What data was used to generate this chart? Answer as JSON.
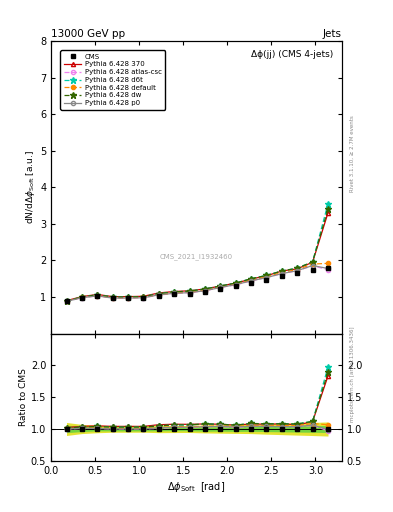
{
  "title_top": "13000 GeV pp",
  "title_right": "Jets",
  "plot_title": "Δϕ(jj) (CMS 4-jets)",
  "ylabel_main": "dN/dΔϕ_rm Soft  [a.u.]",
  "ylabel_ratio": "Ratio to CMS",
  "watermark": "CMS_2021_I1932460",
  "right_label_main": "Rivet 3.1.10, ≥ 2.7M events",
  "right_label_ratio": "mcplots.cern.ch [arXiv:1306.3436]",
  "x_data": [
    0.175,
    0.349,
    0.524,
    0.698,
    0.873,
    1.047,
    1.222,
    1.396,
    1.571,
    1.745,
    1.92,
    2.094,
    2.269,
    2.443,
    2.618,
    2.793,
    2.967,
    3.142
  ],
  "cms_data": [
    0.88,
    0.97,
    1.02,
    0.97,
    0.97,
    0.98,
    1.04,
    1.07,
    1.09,
    1.13,
    1.21,
    1.3,
    1.38,
    1.47,
    1.58,
    1.66,
    1.75,
    1.8
  ],
  "cms_err_green": [
    0.05,
    0.04,
    0.03,
    0.03,
    0.03,
    0.03,
    0.03,
    0.03,
    0.03,
    0.04,
    0.04,
    0.05,
    0.05,
    0.06,
    0.07,
    0.08,
    0.09,
    0.1
  ],
  "cms_err_yellow": [
    0.09,
    0.07,
    0.06,
    0.05,
    0.05,
    0.05,
    0.06,
    0.06,
    0.06,
    0.07,
    0.08,
    0.09,
    0.1,
    0.12,
    0.14,
    0.16,
    0.18,
    0.2
  ],
  "p370_data": [
    0.9,
    1.01,
    1.07,
    1.01,
    1.01,
    1.02,
    1.11,
    1.15,
    1.17,
    1.22,
    1.3,
    1.38,
    1.49,
    1.58,
    1.71,
    1.77,
    1.95,
    3.3
  ],
  "atlas_csc_data": [
    0.88,
    0.98,
    1.03,
    0.97,
    0.97,
    0.98,
    1.05,
    1.1,
    1.12,
    1.17,
    1.26,
    1.33,
    1.44,
    1.53,
    1.64,
    1.72,
    1.85,
    1.75
  ],
  "d6t_data": [
    0.89,
    1.0,
    1.06,
    1.0,
    1.0,
    1.01,
    1.09,
    1.14,
    1.16,
    1.22,
    1.3,
    1.38,
    1.5,
    1.59,
    1.71,
    1.79,
    1.96,
    3.55
  ],
  "default_data": [
    0.89,
    0.99,
    1.04,
    0.98,
    0.98,
    0.99,
    1.06,
    1.11,
    1.13,
    1.18,
    1.27,
    1.35,
    1.46,
    1.55,
    1.67,
    1.75,
    1.9,
    1.92
  ],
  "dw_data": [
    0.89,
    1.0,
    1.06,
    1.0,
    1.0,
    1.01,
    1.09,
    1.14,
    1.16,
    1.22,
    1.3,
    1.38,
    1.5,
    1.59,
    1.71,
    1.79,
    1.96,
    3.4
  ],
  "p0_data": [
    0.88,
    0.98,
    1.03,
    0.97,
    0.97,
    0.98,
    1.06,
    1.1,
    1.12,
    1.17,
    1.26,
    1.34,
    1.44,
    1.53,
    1.64,
    1.72,
    1.86,
    1.78
  ],
  "ylim_main": [
    0.0,
    8.0
  ],
  "ylim_ratio": [
    0.5,
    2.5
  ],
  "yticks_main": [
    1,
    2,
    3,
    4,
    5,
    6,
    7,
    8
  ],
  "yticks_ratio": [
    0.5,
    1.0,
    1.5,
    2.0
  ],
  "xlim": [
    0.0,
    3.3
  ],
  "color_cms": "#000000",
  "color_p370": "#cc0000",
  "color_atlas_csc": "#ee82ee",
  "color_d6t": "#00ccaa",
  "color_default": "#ff8800",
  "color_dw": "#336600",
  "color_p0": "#888888"
}
